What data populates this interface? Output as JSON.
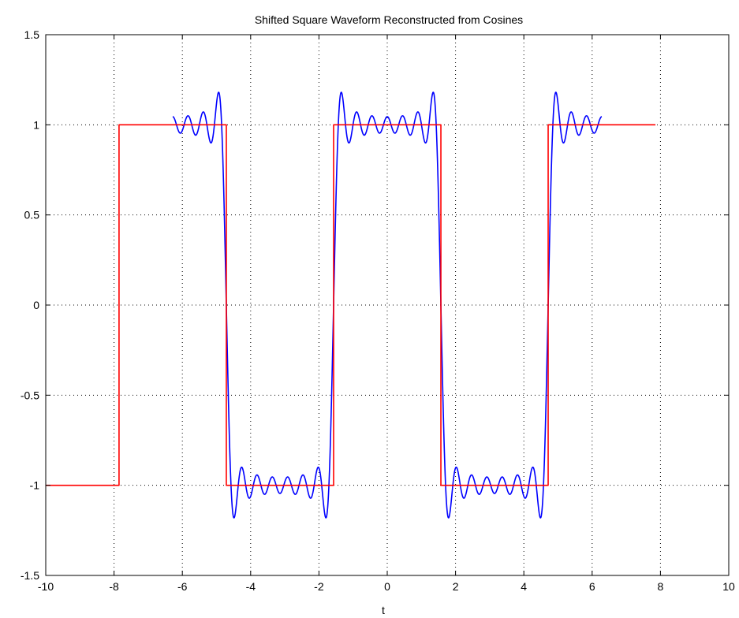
{
  "chart_data": {
    "type": "line",
    "title": "Shifted Square Waveform Reconstructed from Cosines",
    "xlabel": "t",
    "ylabel": "",
    "xlim": [
      -10,
      10
    ],
    "ylim": [
      -1.5,
      1.5
    ],
    "xticks": [
      -10,
      -8,
      -6,
      -4,
      -2,
      0,
      2,
      4,
      6,
      8,
      10
    ],
    "xtick_labels": [
      "-10",
      "-8",
      "-6",
      "-4",
      "-2",
      "0",
      "2",
      "4",
      "6",
      "8",
      "10"
    ],
    "yticks": [
      -1.5,
      -1,
      -0.5,
      0,
      0.5,
      1,
      1.5
    ],
    "ytick_labels": [
      "-1.5",
      "-1",
      "-0.5",
      "0",
      "0.5",
      "1",
      "1.5"
    ],
    "grid": true,
    "grid_style": "dotted",
    "series": [
      {
        "color": "#0000ff",
        "description_values": "Fourier cosine partial sum (harmonics 1..13) of a square wave, over t from -6.283 to 6.283",
        "function": "fourier_square",
        "t_range": [
          -6.283,
          6.283
        ],
        "max_harmonic": 13
      },
      {
        "color": "#ff0000",
        "x": [
          -10,
          -7.854,
          -7.854,
          -4.712,
          -4.712,
          -1.571,
          -1.571,
          1.571,
          1.571,
          4.712,
          4.712,
          7.854
        ],
        "y": [
          -1,
          -1,
          1,
          1,
          -1,
          -1,
          1,
          1,
          -1,
          -1,
          1,
          1
        ]
      }
    ]
  }
}
